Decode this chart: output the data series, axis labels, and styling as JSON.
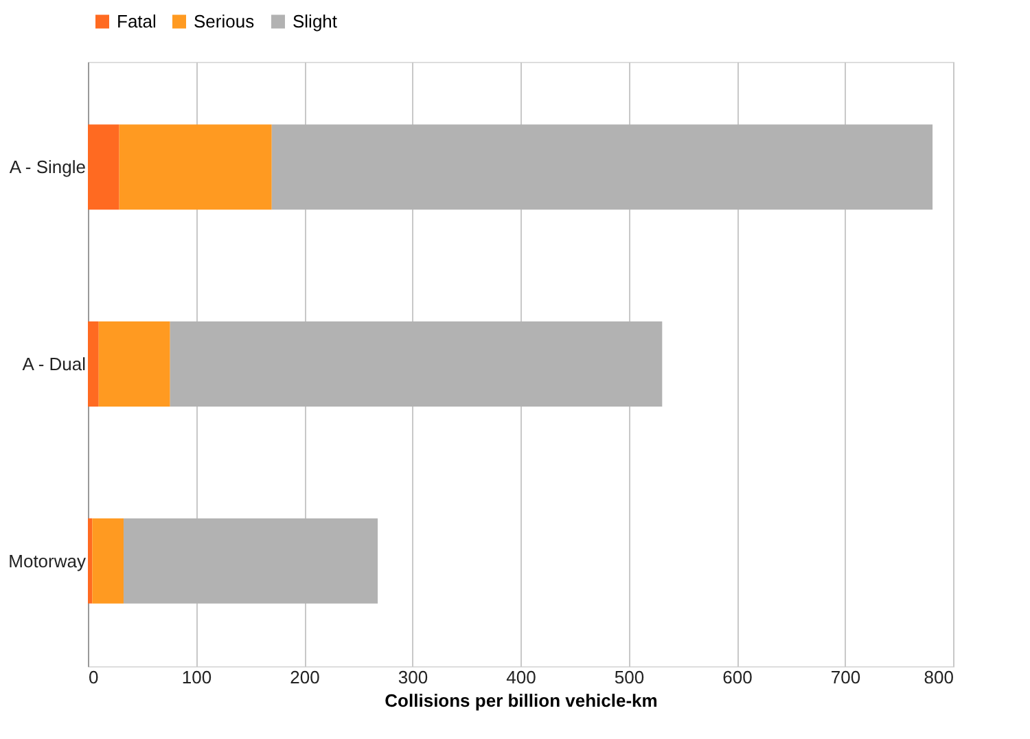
{
  "chart_data": {
    "type": "bar",
    "orientation": "horizontal",
    "stacked": true,
    "categories": [
      "A - Single",
      "A - Dual",
      "Motorway"
    ],
    "series": [
      {
        "name": "Fatal",
        "color": "#ff6a21",
        "values": [
          29,
          10,
          4
        ]
      },
      {
        "name": "Serious",
        "color": "#ff9a21",
        "values": [
          141,
          66,
          29
        ]
      },
      {
        "name": "Slight",
        "color": "#b2b2b2",
        "values": [
          611,
          455,
          235
        ]
      }
    ],
    "xlabel": "Collisions per billion vehicle-km",
    "xlim": [
      0,
      800
    ],
    "xticks": [
      0,
      100,
      200,
      300,
      400,
      500,
      600,
      700,
      800
    ],
    "grid": "x",
    "legend": "top"
  }
}
